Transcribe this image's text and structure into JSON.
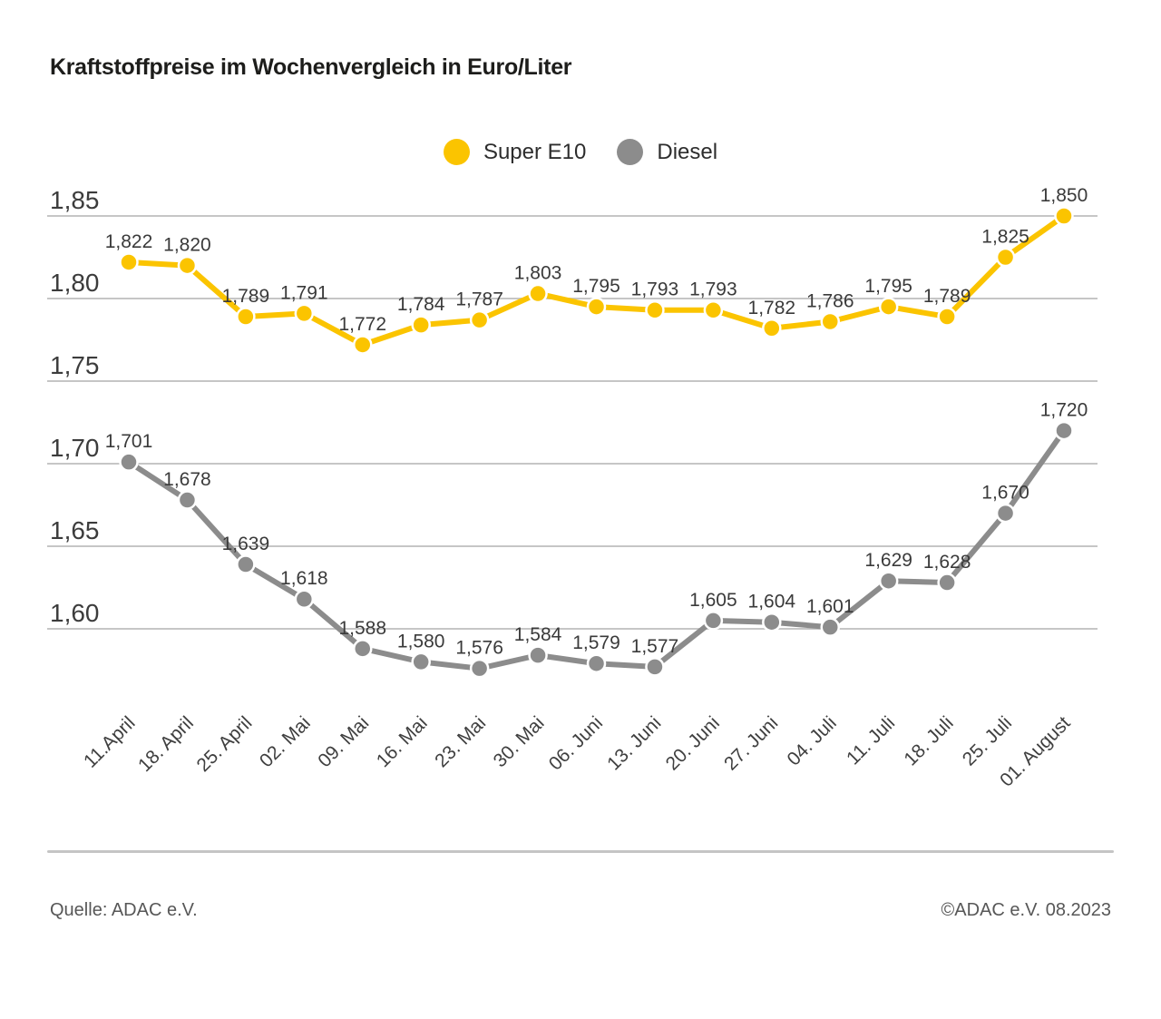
{
  "header": {
    "title": "Kraftstoffpreise im Wochenvergleich in Euro/Liter"
  },
  "legend": [
    {
      "label": "Super E10",
      "color": "#fbc400"
    },
    {
      "label": "Diesel",
      "color": "#8c8c8c"
    }
  ],
  "chart_data": {
    "type": "line",
    "title": "Kraftstoffpreise im Wochenvergleich in Euro/Liter",
    "unit": "Euro/Liter",
    "grid": true,
    "legend_position": "top-center",
    "categories": [
      "11.April",
      "18. April",
      "25. April",
      "02. Mai",
      "09. Mai",
      "16. Mai",
      "23. Mai",
      "30. Mai",
      "06. Juni",
      "13. Juni",
      "20. Juni",
      "27. Juni",
      "04. Juli",
      "11. Juli",
      "18. Juli",
      "25. Juli",
      "01. August"
    ],
    "series": [
      {
        "name": "Super E10",
        "color": "#fbc400",
        "values": [
          1.822,
          1.82,
          1.789,
          1.791,
          1.772,
          1.784,
          1.787,
          1.803,
          1.795,
          1.793,
          1.793,
          1.782,
          1.786,
          1.795,
          1.789,
          1.825,
          1.85
        ],
        "labels": [
          "1,822",
          "1,820",
          "1,789",
          "1,791",
          "1,772",
          "1,784",
          "1,787",
          "1,803",
          "1,795",
          "1,793",
          "1,793",
          "1,782",
          "1,786",
          "1,795",
          "1,789",
          "1,825",
          "1,850"
        ]
      },
      {
        "name": "Diesel",
        "color": "#8c8c8c",
        "values": [
          1.701,
          1.678,
          1.639,
          1.618,
          1.588,
          1.58,
          1.576,
          1.584,
          1.579,
          1.577,
          1.605,
          1.604,
          1.601,
          1.629,
          1.628,
          1.67,
          1.72
        ],
        "labels": [
          "1,701",
          "1,678",
          "1,639",
          "1,618",
          "1,588",
          "1,580",
          "1,576",
          "1,584",
          "1,579",
          "1,577",
          "1,605",
          "1,604",
          "1,601",
          "1,629",
          "1,628",
          "1,670",
          "1,720"
        ]
      }
    ],
    "yticks": {
      "values": [
        1.85,
        1.8,
        1.75,
        1.7,
        1.65,
        1.6
      ],
      "labels": [
        "1,85",
        "1,80",
        "1,75",
        "1,70",
        "1,65",
        "1,60"
      ]
    },
    "ylim": [
      1.56,
      1.87
    ]
  },
  "footer": {
    "source": "Quelle: ADAC e.V.",
    "copyright": "©ADAC e.V. 08.2023"
  }
}
